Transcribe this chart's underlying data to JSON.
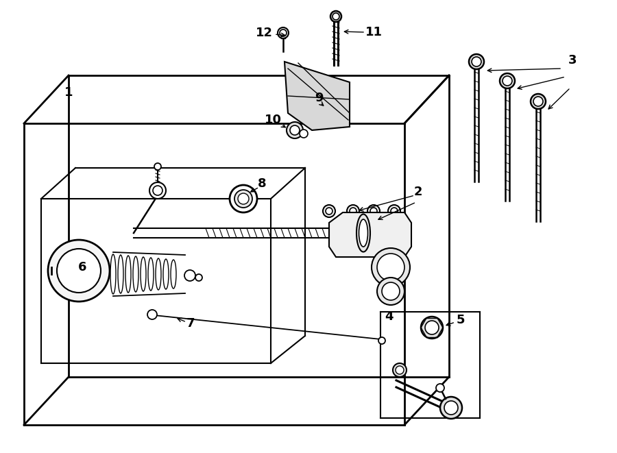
{
  "bg_color": "#ffffff",
  "line_color": "#000000",
  "fig_width": 9.0,
  "fig_height": 6.61
}
